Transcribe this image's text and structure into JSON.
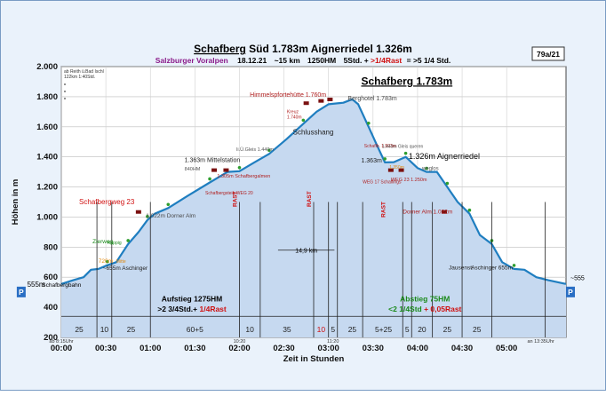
{
  "header": {
    "title_part1": "Schafberg",
    "title_part2": " Süd 1.783m Aignerriedel 1.326m",
    "region": "Salzburger Voralpen",
    "date": "18.12.21",
    "distance": "~15 km",
    "elevation_gain": "1250HM",
    "time_a": "5Std. +",
    "rest": ">1/4Rast",
    "time_b": "= >5 1/4 Std.",
    "tag": "79a/21"
  },
  "corner_note": [
    "ab Reith ü.Bad Ischl",
    "122km  1:40Std."
  ],
  "chart_data": {
    "type": "area",
    "title": "Schafberg Süd 1.783m Aignerriedel 1.326m",
    "xlabel": "Zeit in Stunden",
    "ylabel": "Höhen in m",
    "xlim": [
      0,
      340
    ],
    "ylim": [
      200,
      2000
    ],
    "x_unit": "minutes",
    "grid": true,
    "xticks": [
      {
        "v": 0,
        "label": "00:00"
      },
      {
        "v": 30,
        "label": "00:30"
      },
      {
        "v": 60,
        "label": "01:00"
      },
      {
        "v": 90,
        "label": "01:30"
      },
      {
        "v": 120,
        "label": "02:00"
      },
      {
        "v": 150,
        "label": "02:30"
      },
      {
        "v": 180,
        "label": "03:00"
      },
      {
        "v": 210,
        "label": "03:30"
      },
      {
        "v": 240,
        "label": "04:00"
      },
      {
        "v": 270,
        "label": "04:30"
      },
      {
        "v": 300,
        "label": "05:00"
      }
    ],
    "yticks": [
      {
        "v": 200,
        "label": "200"
      },
      {
        "v": 400,
        "label": "400"
      },
      {
        "v": 600,
        "label": "600"
      },
      {
        "v": 800,
        "label": "800"
      },
      {
        "v": 1000,
        "label": "1.000"
      },
      {
        "v": 1200,
        "label": "1.200"
      },
      {
        "v": 1400,
        "label": "1.400"
      },
      {
        "v": 1600,
        "label": "1.600"
      },
      {
        "v": 1800,
        "label": "1.800"
      },
      {
        "v": 2000,
        "label": "2.000"
      }
    ],
    "profile": [
      {
        "x": 0,
        "y": 555
      },
      {
        "x": 8,
        "y": 580
      },
      {
        "x": 15,
        "y": 600
      },
      {
        "x": 20,
        "y": 650
      },
      {
        "x": 25,
        "y": 655
      },
      {
        "x": 31,
        "y": 680
      },
      {
        "x": 37,
        "y": 700
      },
      {
        "x": 45,
        "y": 820
      },
      {
        "x": 52,
        "y": 900
      },
      {
        "x": 58,
        "y": 980
      },
      {
        "x": 63,
        "y": 1022
      },
      {
        "x": 72,
        "y": 1060
      },
      {
        "x": 85,
        "y": 1140
      },
      {
        "x": 100,
        "y": 1230
      },
      {
        "x": 112,
        "y": 1300
      },
      {
        "x": 120,
        "y": 1305
      },
      {
        "x": 130,
        "y": 1363
      },
      {
        "x": 140,
        "y": 1420
      },
      {
        "x": 152,
        "y": 1520
      },
      {
        "x": 163,
        "y": 1620
      },
      {
        "x": 172,
        "y": 1700
      },
      {
        "x": 180,
        "y": 1750
      },
      {
        "x": 190,
        "y": 1760
      },
      {
        "x": 196,
        "y": 1783
      },
      {
        "x": 200,
        "y": 1750
      },
      {
        "x": 207,
        "y": 1600
      },
      {
        "x": 213,
        "y": 1470
      },
      {
        "x": 218,
        "y": 1363
      },
      {
        "x": 224,
        "y": 1365
      },
      {
        "x": 232,
        "y": 1400
      },
      {
        "x": 240,
        "y": 1326
      },
      {
        "x": 246,
        "y": 1300
      },
      {
        "x": 253,
        "y": 1300
      },
      {
        "x": 260,
        "y": 1200
      },
      {
        "x": 267,
        "y": 1100
      },
      {
        "x": 275,
        "y": 1022
      },
      {
        "x": 282,
        "y": 880
      },
      {
        "x": 290,
        "y": 820
      },
      {
        "x": 297,
        "y": 700
      },
      {
        "x": 305,
        "y": 655
      },
      {
        "x": 312,
        "y": 650
      },
      {
        "x": 320,
        "y": 600
      },
      {
        "x": 328,
        "y": 580
      },
      {
        "x": 340,
        "y": 555
      }
    ],
    "dividers": [
      24,
      34,
      60,
      120,
      134,
      170,
      180,
      186,
      203,
      230,
      236,
      250,
      270,
      290,
      326
    ],
    "rast_marks": [
      {
        "x": 120,
        "label": "RAST",
        "y": 1120
      },
      {
        "x": 170,
        "label": "RAST",
        "y": 1120
      },
      {
        "x": 220,
        "label": "RAST",
        "y": 1050
      }
    ],
    "peak_flags": [
      {
        "x": 165,
        "y": 1745
      },
      {
        "x": 175,
        "y": 1760
      },
      {
        "x": 181,
        "y": 1770
      },
      {
        "x": 103,
        "y": 1300
      },
      {
        "x": 111,
        "y": 1300
      },
      {
        "x": 222,
        "y": 1300
      },
      {
        "x": 229,
        "y": 1300
      },
      {
        "x": 52,
        "y": 1022
      },
      {
        "x": 258,
        "y": 1022
      }
    ],
    "segment_minutes": [
      {
        "x": 12,
        "label": "25",
        "color": "#222222"
      },
      {
        "x": 29,
        "label": "10",
        "color": "#222222"
      },
      {
        "x": 47,
        "label": "25",
        "color": "#222222"
      },
      {
        "x": 90,
        "label": "60+5",
        "color": "#222222",
        "accent": "+5"
      },
      {
        "x": 127,
        "label": "10",
        "color": "#222222"
      },
      {
        "x": 152,
        "label": "35",
        "color": "#222222"
      },
      {
        "x": 175,
        "label": "10",
        "color": "#d01010"
      },
      {
        "x": 183,
        "label": "5",
        "color": "#222222"
      },
      {
        "x": 196,
        "label": "25",
        "color": "#222222"
      },
      {
        "x": 217,
        "label": "5+25",
        "color": "#222222"
      },
      {
        "x": 233,
        "label": "5",
        "color": "#222222"
      },
      {
        "x": 243,
        "label": "20",
        "color": "#222222"
      },
      {
        "x": 260,
        "label": "25",
        "color": "#222222"
      },
      {
        "x": 280,
        "label": "25",
        "color": "#222222"
      }
    ],
    "annotations": [
      {
        "text": "Himmelspfortehütte 1.760m",
        "x": 127,
        "y": 1798,
        "color": "#b02020",
        "size": 7
      },
      {
        "text": "Schafberg 1.783m",
        "x": 202,
        "y": 1880,
        "color": "#000000",
        "size": 12,
        "bold": true,
        "underline": true
      },
      {
        "text": "Berghotel 1.783m",
        "x": 193,
        "y": 1776,
        "color": "#4a4a4a",
        "size": 7
      },
      {
        "text": "Kreuz",
        "x": 152,
        "y": 1690,
        "color": "#b02020",
        "size": 5
      },
      {
        "text": "1.740m",
        "x": 152,
        "y": 1654,
        "color": "#b02020",
        "size": 5
      },
      {
        "text": "Schlusshang",
        "x": 156,
        "y": 1550,
        "color": "#222222",
        "size": 8
      },
      {
        "text": "li.Ü.Gleis 1.440m",
        "x": 118,
        "y": 1440,
        "color": "#555555",
        "size": 5.5
      },
      {
        "text": "1.363m Mittelstation",
        "x": 83,
        "y": 1365,
        "color": "#222222",
        "size": 7
      },
      {
        "text": "840HM",
        "x": 83,
        "y": 1310,
        "color": "#555555",
        "size": 5.5
      },
      {
        "text": "1.305m Schafbergalmen",
        "x": 105,
        "y": 1262,
        "color": "#b02020",
        "size": 5.5
      },
      {
        "text": "Schafbergsteig WEG 20",
        "x": 97,
        "y": 1150,
        "color": "#b02020",
        "size": 5
      },
      {
        "text": "Schafbergweg 23",
        "x": 12,
        "y": 1085,
        "color": "#d01010",
        "size": 8
      },
      {
        "text": "1.022m Dorner Alm",
        "x": 57,
        "y": 996,
        "color": "#4a4a4a",
        "size": 6.5
      },
      {
        "text": "Zierweg",
        "x": 21,
        "y": 825,
        "color": "#1a8a1a",
        "size": 6.5
      },
      {
        "text": "Rappig",
        "x": 31,
        "y": 820,
        "color": "#1a8a1a",
        "size": 5
      },
      {
        "text": "720m",
        "x": 25,
        "y": 697,
        "color": "#e08a10",
        "size": 6.5
      },
      {
        "text": "Mitte",
        "x": 37,
        "y": 697,
        "color": "#e08a10",
        "size": 5
      },
      {
        "text": "~655m Aschinger",
        "x": 28,
        "y": 650,
        "color": "#222222",
        "size": 6.5
      },
      {
        "text": "555m",
        "x": -23,
        "y": 535,
        "color": "#000000",
        "size": 8
      },
      {
        "text": "Schafbergbahn",
        "x": -13,
        "y": 535,
        "color": "#000000",
        "size": 6.5
      },
      {
        "text": "Schaflb. 1.503m",
        "x": 204,
        "y": 1463,
        "color": "#b02020",
        "size": 5
      },
      {
        "text": "1.440m Gleis queren",
        "x": 216,
        "y": 1460,
        "color": "#555555",
        "size": 5
      },
      {
        "text": "1.363m",
        "x": 202,
        "y": 1363,
        "color": "#222222",
        "size": 7
      },
      {
        "text": "1.326m Aignerriedel",
        "x": 234,
        "y": 1387,
        "color": "#000000",
        "size": 9
      },
      {
        "text": "1.350m",
        "x": 221,
        "y": 1320,
        "color": "#e08a10",
        "size": 5
      },
      {
        "text": "weglos",
        "x": 243,
        "y": 1312,
        "color": "#555555",
        "size": 6
      },
      {
        "text": "WEG 17 Schaflings",
        "x": 203,
        "y": 1225,
        "color": "#b02020",
        "size": 5
      },
      {
        "text": "WEG 23 1.250m",
        "x": 222,
        "y": 1238,
        "color": "#b02020",
        "size": 5.5
      },
      {
        "text": "Dorner Alm 1.022m",
        "x": 230,
        "y": 1023,
        "color": "#b02020",
        "size": 6.5
      },
      {
        "text": "Jausenst.",
        "x": 261,
        "y": 652,
        "color": "#222222",
        "size": 6.5
      },
      {
        "text": "Aschinger 655m",
        "x": 276,
        "y": 652,
        "color": "#222222",
        "size": 6.5
      },
      {
        "text": "~555",
        "x": 343,
        "y": 580,
        "color": "#000000",
        "size": 7
      }
    ],
    "distance_marker": {
      "x1": 146,
      "x2": 184,
      "y": 780,
      "label": "14,9 km"
    },
    "ascent_summary": {
      "x": 88,
      "lines": [
        {
          "text": "Aufstieg 1275HM",
          "color": "#000000",
          "y": 440
        },
        {
          "text": ">2 3/4Std.+",
          "color": "#000000",
          "y": 370,
          "suffix": " 1/4Rast",
          "suffix_color": "#d01010"
        }
      ]
    },
    "descent_summary": {
      "x": 245,
      "lines": [
        {
          "text": "Abstieg 75HM",
          "color": "#1a8a1a",
          "y": 440
        },
        {
          "text": "<2 1/4Std",
          "color": "#1a8a1a",
          "y": 370,
          "suffix": " + 0,05Rast",
          "suffix_color": "#d01010"
        }
      ]
    },
    "time_notes": [
      {
        "text": "ab 8:15Uhr",
        "x": 0
      },
      {
        "text": "10:20",
        "x": 120
      },
      {
        "text": "11:20",
        "x": 183
      },
      {
        "text": "an 13:35Uhr",
        "x": 323
      }
    ],
    "p_markers": [
      "P",
      "P"
    ]
  },
  "colors": {
    "fill": "#c6d9f0",
    "line": "#1f7ec0",
    "vegetation": "#2e9e2e",
    "accent_red": "#d01010"
  }
}
